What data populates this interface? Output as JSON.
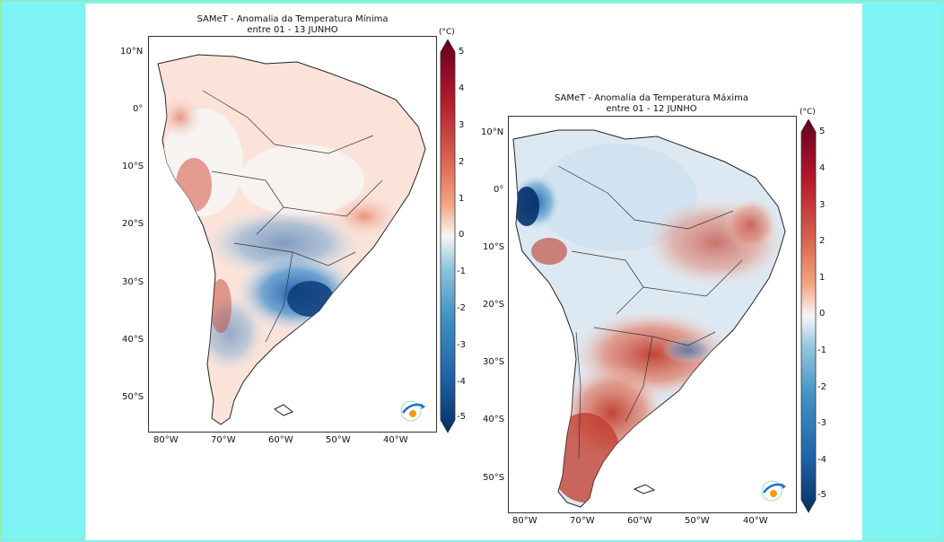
{
  "maps": [
    {
      "title_line1": "SAMeT - Anomalia da Temperatura Mínima",
      "title_line2": "entre 01 - 13 JUNHO",
      "lat_ticks": [
        "10°N",
        "0°",
        "10°S",
        "20°S",
        "30°S",
        "40°S",
        "50°S"
      ],
      "lon_ticks": [
        "80°W",
        "70°W",
        "60°W",
        "50°W",
        "40°W"
      ],
      "colorbar_unit": "(°C)",
      "colorbar_ticks": [
        "5",
        "4",
        "3",
        "2",
        "1",
        "0",
        "-1",
        "-2",
        "-3",
        "-4",
        "-5"
      ],
      "logo": "inpe-cptec-logo"
    },
    {
      "title_line1": "SAMeT - Anomalia da Temperatura Máxima",
      "title_line2": "entre 01 - 12 JUNHO",
      "lat_ticks": [
        "10°N",
        "0°",
        "10°S",
        "20°S",
        "30°S",
        "40°S",
        "50°S"
      ],
      "lon_ticks": [
        "80°W",
        "70°W",
        "60°W",
        "50°W",
        "40°W"
      ],
      "colorbar_unit": "(°C)",
      "colorbar_ticks": [
        "5",
        "4",
        "3",
        "2",
        "1",
        "0",
        "-1",
        "-2",
        "-3",
        "-4",
        "-5"
      ],
      "logo": "inpe-cptec-logo"
    }
  ],
  "colors": {
    "background": "#7ef3f3",
    "colormap_max": "#67001f",
    "colormap_mid": "#f7f7f7",
    "colormap_min": "#053061"
  }
}
